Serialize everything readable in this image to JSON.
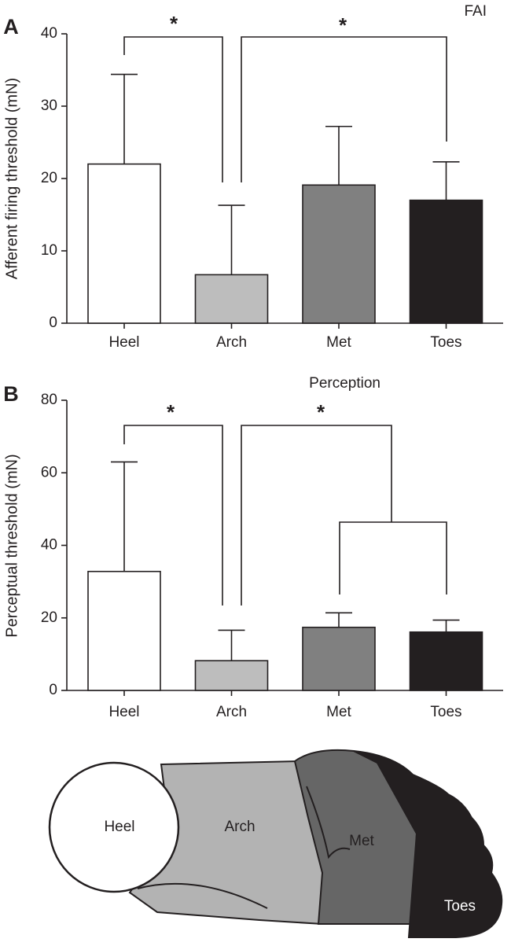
{
  "chart_data": [
    {
      "type": "bar",
      "panel_label": "A",
      "title": "FAI",
      "y_label": "Afferent firing threshold (mN)",
      "categories": [
        "Heel",
        "Arch",
        "Met",
        "Toes"
      ],
      "values": [
        22,
        6.7,
        19.1,
        17
      ],
      "errors": [
        12.4,
        9.6,
        8.1,
        5.3
      ],
      "colors": [
        "#ffffff",
        "#bdbdbd",
        "#808080",
        "#231f20"
      ],
      "ylim": [
        0,
        40
      ],
      "yticks": [
        0,
        10,
        20,
        30,
        40
      ],
      "annotations": [
        "*",
        "*"
      ]
    },
    {
      "type": "bar",
      "panel_label": "B",
      "title": "Perception",
      "y_label": "Perceptual threshold (mN)",
      "categories": [
        "Heel",
        "Arch",
        "Met",
        "Toes"
      ],
      "values": [
        32.8,
        8.2,
        17.4,
        16.1
      ],
      "errors": [
        30.2,
        8.4,
        4,
        3.3
      ],
      "colors": [
        "#ffffff",
        "#bdbdbd",
        "#808080",
        "#231f20"
      ],
      "ylim": [
        0,
        80
      ],
      "yticks": [
        0,
        20,
        40,
        60,
        80
      ],
      "annotations": [
        "*",
        "*"
      ]
    }
  ],
  "diagram": {
    "labels": [
      "Heel",
      "Arch",
      "Met",
      "Toes"
    ]
  }
}
